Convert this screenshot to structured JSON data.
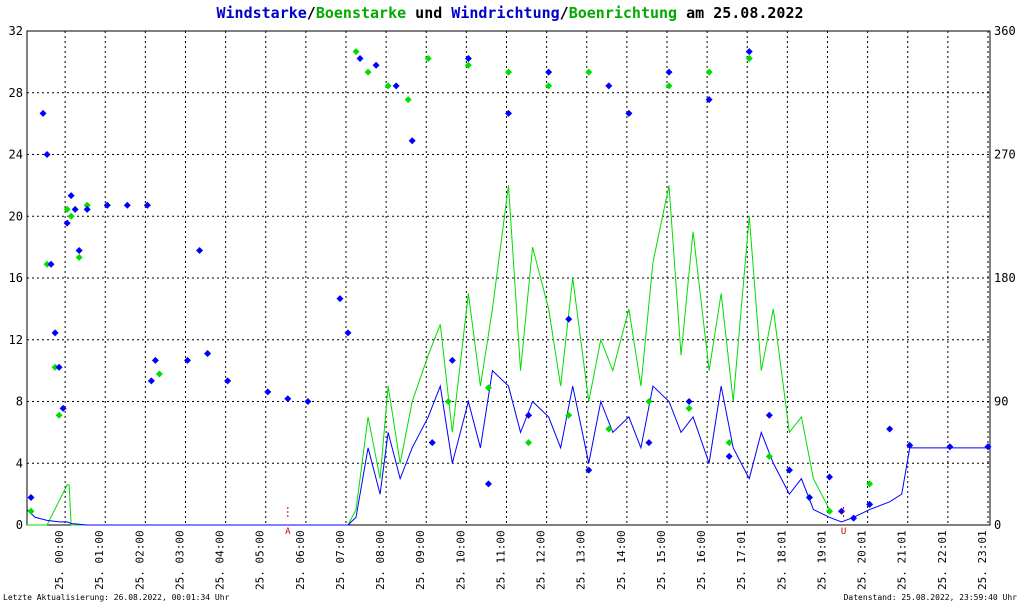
{
  "title": {
    "part1": "Windstarke",
    "sep1": "/",
    "part2": "Boenstarke",
    "mid": " und ",
    "part3": "Windrichtung",
    "sep2": "/",
    "part4": "Boenrichtung",
    "tail": " am 25.08.2022"
  },
  "footer": {
    "left": "Letzte Aktualisierung: 26.08.2022, 00:01:34 Uhr",
    "right": "Datenstand: 25.08.2022, 23:59:40 Uhr"
  },
  "colors": {
    "windstarke": "#0000ff",
    "boenstarke": "#00dd00",
    "grid": "#000000",
    "marker": "#cc0000"
  },
  "chart_data": {
    "type": "line",
    "left_axis": {
      "min": 0,
      "max": 32,
      "ticks": [
        0,
        4,
        8,
        12,
        16,
        20,
        24,
        28,
        32
      ]
    },
    "right_axis": {
      "min": 0,
      "max": 360,
      "ticks": [
        0,
        90,
        180,
        270,
        360
      ]
    },
    "grid": true,
    "x_labels": [
      "25. 00:00",
      "25. 01:00",
      "25. 02:00",
      "25. 03:00",
      "25. 04:00",
      "25. 05:00",
      "25. 06:00",
      "25. 07:00",
      "25. 08:00",
      "25. 09:00",
      "25. 10:00",
      "25. 11:00",
      "25. 12:00",
      "25. 13:00",
      "25. 14:00",
      "25. 15:00",
      "25. 16:00",
      "25. 17:01",
      "25. 18:01",
      "25. 19:01",
      "25. 20:01",
      "25. 21:01",
      "25. 22:01",
      "25. 23:01"
    ],
    "markers": [
      {
        "label": "A",
        "hour": 6.5
      },
      {
        "label": "U",
        "hour": 20.35
      }
    ],
    "series": [
      {
        "name": "Windstarke",
        "hours": [
          0,
          0.2,
          0.5,
          0.8,
          1.0,
          1.1,
          1.5,
          2.0,
          3.0,
          3.1,
          4.0,
          4.4,
          5.0,
          6.0,
          6.5,
          7.0,
          7.8,
          8.0,
          8.2,
          8.5,
          8.8,
          9.0,
          9.3,
          9.6,
          10.0,
          10.3,
          10.6,
          11.0,
          11.3,
          11.6,
          12.0,
          12.3,
          12.6,
          13.0,
          13.3,
          13.6,
          14.0,
          14.3,
          14.6,
          15.0,
          15.3,
          15.6,
          16.0,
          16.3,
          16.6,
          17.0,
          17.3,
          17.6,
          18.0,
          18.3,
          18.6,
          19.0,
          19.3,
          19.6,
          20.0,
          20.3,
          20.6,
          21.0,
          21.5,
          21.8,
          22.0,
          23.0,
          23.95
        ],
        "values": [
          1,
          0.5,
          0.3,
          0.2,
          0.2,
          0.1,
          0,
          0,
          0,
          0,
          0,
          0,
          0,
          0,
          0,
          0,
          0,
          0,
          0.5,
          5,
          2,
          6,
          3,
          5,
          7,
          9,
          4,
          8,
          5,
          10,
          9,
          6,
          8,
          7,
          5,
          9,
          4,
          8,
          6,
          7,
          5,
          9,
          8,
          6,
          7,
          4,
          9,
          5,
          3,
          6,
          4,
          2,
          3,
          1,
          0.5,
          0.2,
          0.5,
          1,
          1.5,
          2,
          5,
          5,
          5
        ]
      },
      {
        "name": "Boenstarke",
        "hours": [
          0,
          0.5,
          1.0,
          1.05,
          1.1,
          1.2,
          1.5,
          3.0,
          7.8,
          8.0,
          8.2,
          8.5,
          8.8,
          9.0,
          9.3,
          9.6,
          10.0,
          10.3,
          10.6,
          11.0,
          11.3,
          11.6,
          12.0,
          12.3,
          12.6,
          13.0,
          13.3,
          13.6,
          14.0,
          14.3,
          14.6,
          15.0,
          15.3,
          15.6,
          16.0,
          16.3,
          16.6,
          17.0,
          17.3,
          17.6,
          18.0,
          18.3,
          18.6,
          19.0,
          19.3,
          19.6,
          20.0
        ],
        "values": [
          0,
          0,
          2.6,
          2.6,
          0,
          0,
          0,
          0,
          0,
          0,
          1,
          7,
          3,
          9,
          4,
          8,
          11,
          13,
          6,
          15,
          9,
          14,
          22,
          10,
          18,
          14,
          9,
          16,
          8,
          12,
          10,
          14,
          9,
          17,
          22,
          11,
          19,
          10,
          15,
          8,
          20,
          10,
          14,
          6,
          7,
          3,
          1
        ]
      },
      {
        "name": "Windrichtung",
        "hours": [
          0.1,
          0.4,
          0.5,
          0.6,
          0.7,
          0.8,
          0.9,
          1.0,
          1.1,
          1.2,
          1.3,
          1.5,
          2.0,
          2.5,
          3.0,
          3.1,
          3.2,
          4.0,
          4.3,
          4.5,
          5.0,
          6.0,
          6.5,
          7.0,
          7.8,
          8.0,
          8.3,
          8.7,
          9.2,
          9.6,
          10.1,
          10.6,
          11.0,
          11.5,
          12.0,
          12.5,
          13.0,
          13.5,
          14.0,
          14.5,
          15.0,
          15.5,
          16.0,
          16.5,
          17.0,
          17.5,
          18.0,
          18.5,
          19.0,
          19.5,
          20.0,
          20.3,
          20.6,
          21.0,
          21.5,
          22.0,
          23.0,
          23.95
        ],
        "values": [
          20,
          300,
          270,
          190,
          140,
          115,
          85,
          220,
          240,
          230,
          200,
          230,
          233,
          233,
          233,
          105,
          120,
          120,
          200,
          125,
          105,
          97,
          92,
          90,
          165,
          140,
          340,
          335,
          320,
          280,
          60,
          120,
          340,
          30,
          300,
          80,
          330,
          150,
          40,
          320,
          300,
          60,
          330,
          90,
          310,
          50,
          345,
          80,
          40,
          20,
          35,
          10,
          5,
          15,
          70,
          58,
          57,
          57
        ]
      },
      {
        "name": "Boenrichtung",
        "hours": [
          0.1,
          0.5,
          0.7,
          0.8,
          1.0,
          1.1,
          1.3,
          1.5,
          2.0,
          3.0,
          3.3,
          4.5,
          8.2,
          8.5,
          9.0,
          9.5,
          10.0,
          10.5,
          11.0,
          11.5,
          12.0,
          12.5,
          13.0,
          13.5,
          14.0,
          14.5,
          15.0,
          15.5,
          16.0,
          16.5,
          17.0,
          17.5,
          18.0,
          18.5,
          19.0,
          19.5,
          20.0,
          21.0
        ],
        "values": [
          10,
          190,
          115,
          80,
          230,
          225,
          195,
          233,
          233,
          233,
          110,
          125,
          345,
          330,
          320,
          310,
          340,
          90,
          335,
          100,
          330,
          60,
          320,
          80,
          330,
          70,
          300,
          90,
          320,
          85,
          330,
          60,
          340,
          50,
          40,
          20,
          10,
          30
        ]
      }
    ]
  }
}
